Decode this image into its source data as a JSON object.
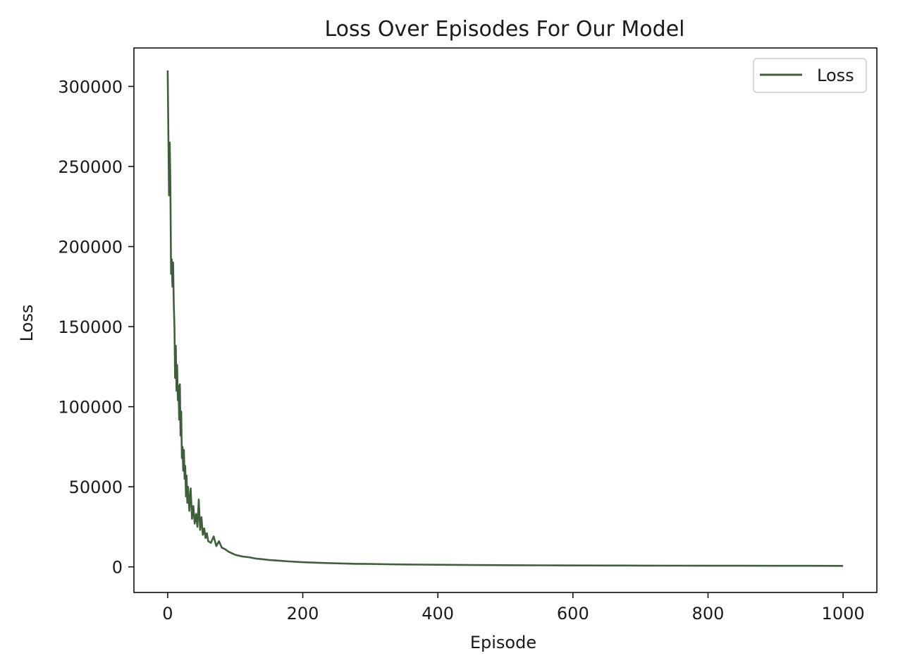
{
  "chart_data": {
    "type": "line",
    "title": "Loss Over Episodes For Our Model",
    "xlabel": "Episode",
    "ylabel": "Loss",
    "xlim": [
      -50,
      1050
    ],
    "ylim": [
      -16000,
      324000
    ],
    "xticks": [
      0,
      200,
      400,
      600,
      800,
      1000
    ],
    "yticks": [
      0,
      50000,
      100000,
      150000,
      200000,
      250000,
      300000
    ],
    "xtick_labels": [
      "0",
      "200",
      "400",
      "600",
      "800",
      "1000"
    ],
    "ytick_labels": [
      "0",
      "50000",
      "100000",
      "150000",
      "200000",
      "250000",
      "300000"
    ],
    "legend_position": "top-right",
    "grid": false,
    "series": [
      {
        "name": "Loss",
        "color": "#3f5f3c",
        "x": [
          0,
          2,
          3,
          4,
          5,
          6,
          7,
          8,
          9,
          10,
          11,
          12,
          13,
          14,
          15,
          16,
          17,
          18,
          19,
          20,
          21,
          22,
          23,
          24,
          25,
          26,
          27,
          28,
          29,
          30,
          32,
          34,
          36,
          38,
          40,
          42,
          44,
          46,
          48,
          50,
          52,
          54,
          56,
          58,
          60,
          64,
          68,
          72,
          76,
          80,
          85,
          90,
          95,
          100,
          110,
          120,
          130,
          140,
          150,
          160,
          170,
          180,
          190,
          200,
          220,
          240,
          260,
          280,
          300,
          325,
          350,
          375,
          400,
          450,
          500,
          550,
          600,
          650,
          700,
          750,
          800,
          850,
          900,
          950,
          1000
        ],
        "values": [
          310000,
          232000,
          265000,
          240000,
          183000,
          192000,
          175000,
          190000,
          165000,
          150000,
          118000,
          138000,
          110000,
          126000,
          104000,
          113000,
          92000,
          114000,
          82000,
          97000,
          68000,
          75000,
          60000,
          73000,
          55000,
          63000,
          44000,
          57000,
          40000,
          50000,
          35000,
          49000,
          30000,
          38000,
          27000,
          33000,
          25000,
          42000,
          23000,
          31000,
          20000,
          24000,
          18000,
          21000,
          16000,
          15000,
          19000,
          13000,
          16000,
          12000,
          11000,
          9500,
          8500,
          7500,
          6500,
          6000,
          5200,
          4800,
          4300,
          4000,
          3700,
          3400,
          3100,
          2900,
          2600,
          2300,
          2100,
          1900,
          1800,
          1600,
          1500,
          1400,
          1300,
          1150,
          1050,
          950,
          880,
          820,
          770,
          730,
          700,
          670,
          650,
          630,
          600
        ]
      }
    ]
  }
}
